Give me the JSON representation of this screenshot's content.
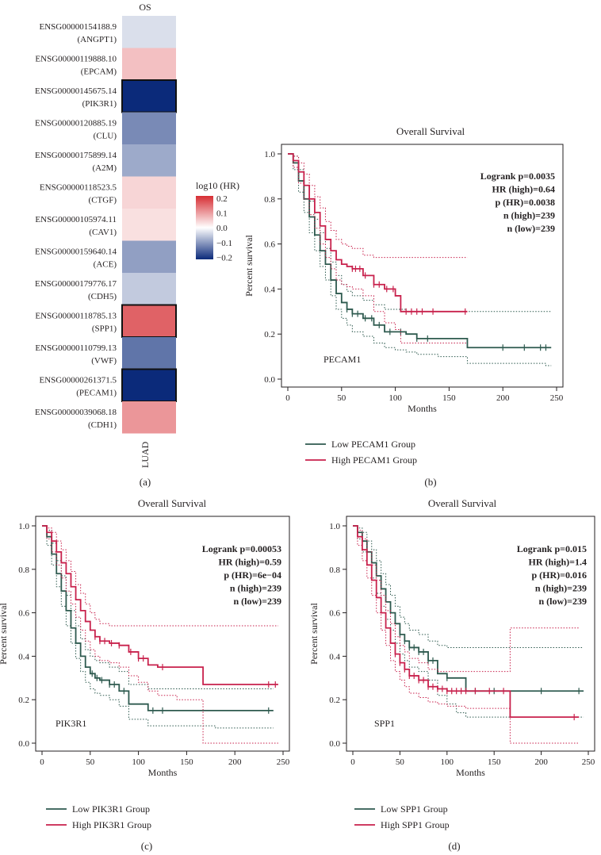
{
  "panel_labels": [
    "(a)",
    "(b)",
    "(c)",
    "(d)"
  ],
  "chart_data": [
    {
      "type": "heatmap",
      "column_title": "OS",
      "column_label": "LUAD",
      "legend_title": "log10 (HR)",
      "legend_ticks": [
        "0.2",
        "0.1",
        "0.0",
        "−0.1",
        "−0.2"
      ],
      "value_range": [
        -0.2,
        0.2
      ],
      "low_color": "#0b2a7a",
      "mid_color": "#ffffff",
      "high_color": "#d62d33",
      "rows": [
        {
          "id": "ENSG00000154188.9",
          "gene": "(ANGPT1)",
          "value": -0.03,
          "highlight": false
        },
        {
          "id": "ENSG00000119888.10",
          "gene": "(EPCAM)",
          "value": 0.06,
          "highlight": false
        },
        {
          "id": "ENSG00000145675.14",
          "gene": "(PIK3R1)",
          "value": -0.23,
          "highlight": true
        },
        {
          "id": "ENSG00000120885.19",
          "gene": "(CLU)",
          "value": -0.11,
          "highlight": false
        },
        {
          "id": "ENSG00000175899.14",
          "gene": "(A2M)",
          "value": -0.08,
          "highlight": false
        },
        {
          "id": "ENSG00000118523.5",
          "gene": "(CTGF)",
          "value": 0.04,
          "highlight": false
        },
        {
          "id": "ENSG00000105974.11",
          "gene": "(CAV1)",
          "value": 0.03,
          "highlight": false
        },
        {
          "id": "ENSG00000159640.14",
          "gene": "(ACE)",
          "value": -0.09,
          "highlight": false
        },
        {
          "id": "ENSG00000179776.17",
          "gene": "(CDH5)",
          "value": -0.05,
          "highlight": false
        },
        {
          "id": "ENSG00000118785.13",
          "gene": "(SPP1)",
          "value": 0.15,
          "highlight": true
        },
        {
          "id": "ENSG00000110799.13",
          "gene": "(VWF)",
          "value": -0.13,
          "highlight": false
        },
        {
          "id": "ENSG00000261371.5",
          "gene": "(PECAM1)",
          "value": -0.2,
          "highlight": true
        },
        {
          "id": "ENSG00000039068.18",
          "gene": "(CDH1)",
          "value": 0.1,
          "highlight": false
        }
      ]
    },
    {
      "type": "line",
      "panel": "(b)",
      "title": "Overall Survival",
      "xlabel": "Months",
      "ylabel": "Percent survival",
      "xlim": [
        0,
        250
      ],
      "ylim": [
        0,
        1
      ],
      "xticks": [
        0,
        50,
        100,
        150,
        200,
        250
      ],
      "yticks": [
        0.0,
        0.2,
        0.4,
        0.6,
        0.8,
        1.0
      ],
      "gene_label": "PECAM1",
      "stats": [
        "Logrank p=0.0035",
        "HR (high)=0.64",
        "p (HR)=0.0038",
        "n (high)=239",
        "n (low)=239"
      ],
      "series": [
        {
          "name": "Low PECAM1 Group",
          "color": "#2e5a4f",
          "x": [
            0,
            5,
            10,
            15,
            20,
            25,
            30,
            35,
            40,
            45,
            50,
            55,
            60,
            70,
            80,
            90,
            100,
            110,
            120,
            140,
            160,
            167,
            180,
            200,
            220,
            240,
            245
          ],
          "y": [
            1.0,
            0.96,
            0.88,
            0.8,
            0.72,
            0.64,
            0.57,
            0.51,
            0.44,
            0.38,
            0.34,
            0.31,
            0.29,
            0.27,
            0.24,
            0.21,
            0.21,
            0.2,
            0.18,
            0.18,
            0.18,
            0.14,
            0.14,
            0.14,
            0.14,
            0.14,
            0.14
          ],
          "upper": [
            1.0,
            0.99,
            0.93,
            0.86,
            0.79,
            0.71,
            0.65,
            0.58,
            0.52,
            0.46,
            0.42,
            0.39,
            0.37,
            0.35,
            0.33,
            0.31,
            0.31,
            0.3,
            0.3,
            0.3,
            0.3,
            0.3,
            0.3,
            0.3,
            0.3,
            0.3,
            0.3
          ],
          "lower": [
            1.0,
            0.93,
            0.83,
            0.74,
            0.65,
            0.57,
            0.5,
            0.44,
            0.37,
            0.31,
            0.27,
            0.24,
            0.21,
            0.19,
            0.16,
            0.14,
            0.13,
            0.12,
            0.11,
            0.1,
            0.1,
            0.07,
            0.07,
            0.07,
            0.07,
            0.06,
            0.06
          ],
          "censor_x": [
            55,
            60,
            65,
            72,
            78,
            85,
            95,
            105,
            120,
            130,
            200,
            220,
            235,
            240
          ]
        },
        {
          "name": "High PECAM1 Group",
          "color": "#c8214c",
          "x": [
            0,
            5,
            10,
            15,
            20,
            25,
            30,
            35,
            40,
            45,
            50,
            55,
            60,
            70,
            80,
            90,
            100,
            105,
            120,
            140,
            160,
            167
          ],
          "y": [
            1.0,
            0.97,
            0.92,
            0.86,
            0.8,
            0.74,
            0.68,
            0.62,
            0.57,
            0.53,
            0.51,
            0.5,
            0.49,
            0.46,
            0.42,
            0.4,
            0.37,
            0.3,
            0.3,
            0.3,
            0.3,
            0.3
          ],
          "upper": [
            1.0,
            0.99,
            0.96,
            0.91,
            0.86,
            0.81,
            0.76,
            0.7,
            0.66,
            0.62,
            0.6,
            0.59,
            0.58,
            0.55,
            0.54,
            0.54,
            0.54,
            0.54,
            0.54,
            0.54,
            0.54,
            0.54
          ],
          "lower": [
            1.0,
            0.94,
            0.87,
            0.8,
            0.73,
            0.67,
            0.6,
            0.54,
            0.49,
            0.44,
            0.42,
            0.41,
            0.4,
            0.37,
            0.3,
            0.25,
            0.22,
            0.16,
            0.16,
            0.16,
            0.16,
            0.16
          ],
          "censor_x": [
            60,
            63,
            67,
            72,
            80,
            85,
            92,
            98,
            110,
            115,
            120,
            125,
            135,
            165
          ]
        }
      ]
    },
    {
      "type": "line",
      "panel": "(c)",
      "title": "Overall Survival",
      "xlabel": "Months",
      "ylabel": "Percent survival",
      "xlim": [
        0,
        250
      ],
      "ylim": [
        0,
        1
      ],
      "xticks": [
        0,
        50,
        100,
        150,
        200,
        250
      ],
      "yticks": [
        0.0,
        0.2,
        0.4,
        0.6,
        0.8,
        1.0
      ],
      "gene_label": "PIK3R1",
      "stats": [
        "Logrank p=0.00053",
        "HR (high)=0.59",
        "p (HR)=6e−04",
        "n (high)=239",
        "n (low)=239"
      ],
      "series": [
        {
          "name": "Low PIK3R1 Group",
          "color": "#2e5a4f",
          "x": [
            0,
            5,
            10,
            15,
            20,
            25,
            30,
            35,
            40,
            45,
            50,
            55,
            60,
            70,
            80,
            90,
            100,
            110,
            120,
            140,
            160,
            180,
            200,
            220,
            240
          ],
          "y": [
            1.0,
            0.95,
            0.87,
            0.78,
            0.7,
            0.61,
            0.53,
            0.46,
            0.4,
            0.35,
            0.32,
            0.3,
            0.29,
            0.27,
            0.24,
            0.18,
            0.18,
            0.15,
            0.15,
            0.15,
            0.15,
            0.15,
            0.15,
            0.15,
            0.15
          ],
          "upper": [
            1.0,
            0.98,
            0.92,
            0.84,
            0.77,
            0.68,
            0.61,
            0.54,
            0.48,
            0.43,
            0.4,
            0.38,
            0.37,
            0.35,
            0.33,
            0.27,
            0.27,
            0.25,
            0.25,
            0.25,
            0.25,
            0.25,
            0.25,
            0.25,
            0.25
          ],
          "lower": [
            1.0,
            0.91,
            0.82,
            0.72,
            0.63,
            0.54,
            0.46,
            0.39,
            0.33,
            0.28,
            0.25,
            0.23,
            0.22,
            0.2,
            0.17,
            0.11,
            0.11,
            0.08,
            0.08,
            0.08,
            0.08,
            0.07,
            0.07,
            0.07,
            0.07
          ],
          "censor_x": [
            52,
            57,
            62,
            70,
            75,
            85,
            115,
            125,
            235
          ]
        },
        {
          "name": "High PIK3R1 Group",
          "color": "#c8214c",
          "x": [
            0,
            5,
            10,
            15,
            20,
            25,
            30,
            35,
            40,
            45,
            50,
            55,
            60,
            70,
            80,
            90,
            100,
            110,
            120,
            140,
            160,
            167,
            180,
            200,
            220,
            240,
            245
          ],
          "y": [
            1.0,
            0.97,
            0.93,
            0.88,
            0.83,
            0.78,
            0.72,
            0.66,
            0.61,
            0.56,
            0.52,
            0.49,
            0.47,
            0.46,
            0.45,
            0.42,
            0.39,
            0.36,
            0.35,
            0.35,
            0.35,
            0.27,
            0.27,
            0.27,
            0.27,
            0.27,
            0.27
          ],
          "upper": [
            1.0,
            0.99,
            0.97,
            0.93,
            0.89,
            0.84,
            0.79,
            0.73,
            0.69,
            0.64,
            0.6,
            0.57,
            0.55,
            0.54,
            0.54,
            0.54,
            0.54,
            0.54,
            0.54,
            0.54,
            0.54,
            0.54,
            0.54,
            0.54,
            0.54,
            0.54,
            0.54
          ],
          "lower": [
            1.0,
            0.94,
            0.88,
            0.82,
            0.76,
            0.7,
            0.64,
            0.58,
            0.52,
            0.47,
            0.43,
            0.4,
            0.38,
            0.37,
            0.35,
            0.31,
            0.28,
            0.24,
            0.22,
            0.2,
            0.2,
            0.0,
            0.0,
            0.0,
            0.0,
            0.0,
            0.0
          ],
          "censor_x": [
            55,
            60,
            65,
            72,
            80,
            92,
            100,
            105,
            125,
            235,
            242
          ]
        }
      ]
    },
    {
      "type": "line",
      "panel": "(d)",
      "title": "Overall Survival",
      "xlabel": "Months",
      "ylabel": "Percent survival",
      "xlim": [
        0,
        250
      ],
      "ylim": [
        0,
        1
      ],
      "xticks": [
        0,
        50,
        100,
        150,
        200,
        250
      ],
      "yticks": [
        0.0,
        0.2,
        0.4,
        0.6,
        0.8,
        1.0
      ],
      "gene_label": "SPP1",
      "stats": [
        "Logrank p=0.015",
        "HR (high)=1.4",
        "p (HR)=0.016",
        "n (high)=239",
        "n (low)=239"
      ],
      "series": [
        {
          "name": "Low SPP1 Group",
          "color": "#2e5a4f",
          "x": [
            0,
            5,
            10,
            15,
            20,
            25,
            30,
            35,
            40,
            45,
            50,
            55,
            60,
            70,
            80,
            90,
            100,
            110,
            120,
            140,
            160,
            167,
            180,
            200,
            220,
            240,
            245
          ],
          "y": [
            1.0,
            0.97,
            0.93,
            0.88,
            0.83,
            0.77,
            0.71,
            0.65,
            0.6,
            0.55,
            0.5,
            0.47,
            0.44,
            0.42,
            0.38,
            0.32,
            0.3,
            0.3,
            0.24,
            0.24,
            0.24,
            0.24,
            0.24,
            0.24,
            0.24,
            0.24,
            0.24
          ],
          "upper": [
            1.0,
            0.99,
            0.97,
            0.93,
            0.89,
            0.84,
            0.78,
            0.73,
            0.68,
            0.63,
            0.58,
            0.55,
            0.52,
            0.5,
            0.47,
            0.45,
            0.44,
            0.44,
            0.44,
            0.44,
            0.44,
            0.44,
            0.44,
            0.44,
            0.44,
            0.44,
            0.44
          ],
          "lower": [
            1.0,
            0.94,
            0.88,
            0.82,
            0.76,
            0.69,
            0.63,
            0.57,
            0.52,
            0.46,
            0.41,
            0.38,
            0.35,
            0.33,
            0.29,
            0.22,
            0.18,
            0.14,
            0.12,
            0.12,
            0.12,
            0.12,
            0.12,
            0.12,
            0.12,
            0.12,
            0.12
          ],
          "censor_x": [
            50,
            55,
            60,
            65,
            70,
            75,
            80,
            85,
            100,
            130,
            150,
            200,
            240
          ]
        },
        {
          "name": "High SPP1 Group",
          "color": "#c8214c",
          "x": [
            0,
            5,
            10,
            15,
            20,
            25,
            30,
            35,
            40,
            45,
            50,
            55,
            60,
            70,
            80,
            90,
            100,
            110,
            120,
            140,
            160,
            167,
            180,
            200,
            220,
            240
          ],
          "y": [
            1.0,
            0.95,
            0.89,
            0.82,
            0.75,
            0.67,
            0.6,
            0.53,
            0.46,
            0.41,
            0.37,
            0.34,
            0.31,
            0.29,
            0.26,
            0.25,
            0.24,
            0.24,
            0.24,
            0.24,
            0.24,
            0.12,
            0.12,
            0.12,
            0.12,
            0.12
          ],
          "upper": [
            1.0,
            0.98,
            0.94,
            0.88,
            0.82,
            0.75,
            0.68,
            0.61,
            0.55,
            0.49,
            0.45,
            0.42,
            0.39,
            0.37,
            0.34,
            0.33,
            0.33,
            0.33,
            0.33,
            0.33,
            0.33,
            0.53,
            0.53,
            0.53,
            0.53,
            0.53
          ],
          "lower": [
            1.0,
            0.91,
            0.84,
            0.76,
            0.68,
            0.6,
            0.52,
            0.45,
            0.38,
            0.33,
            0.29,
            0.26,
            0.23,
            0.21,
            0.19,
            0.18,
            0.17,
            0.17,
            0.16,
            0.16,
            0.16,
            0.0,
            0.0,
            0.0,
            0.0,
            0.0
          ],
          "censor_x": [
            45,
            50,
            55,
            60,
            65,
            70,
            75,
            80,
            85,
            90,
            95,
            100,
            105,
            110,
            115,
            120,
            130,
            145,
            160,
            235
          ]
        }
      ]
    }
  ]
}
